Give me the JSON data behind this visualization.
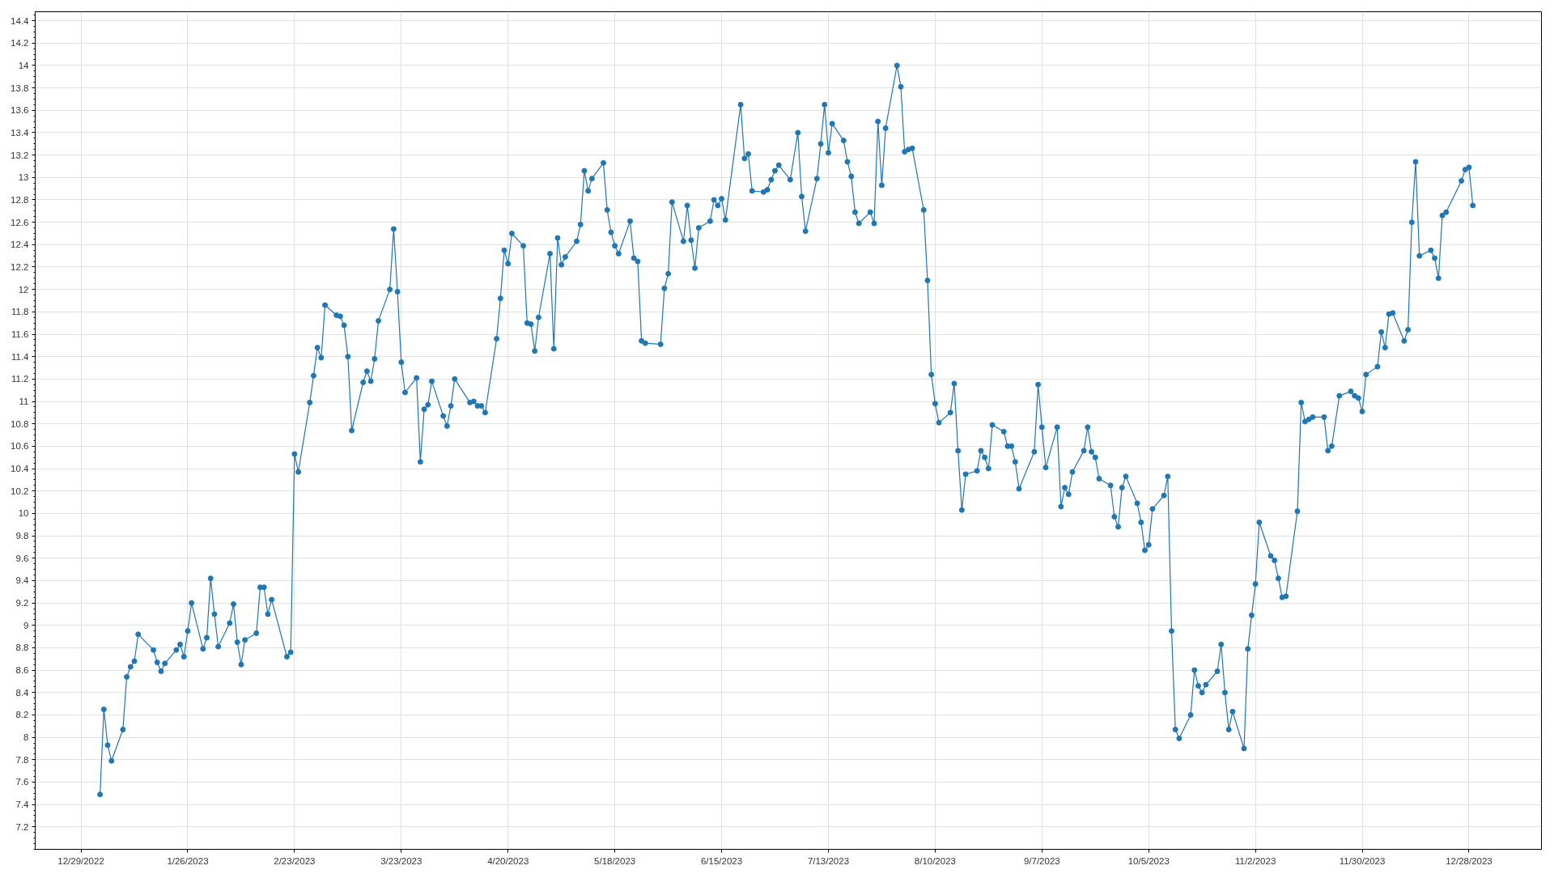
{
  "chart_data": {
    "type": "line",
    "color": "#1f77b4",
    "marker": "circle",
    "line_style": "solid",
    "grid": true,
    "xlim": [
      "2022-12-17",
      "2024-01-16"
    ],
    "xticks": [
      {
        "value": "2022-12-29",
        "label": "12/29/2022"
      },
      {
        "value": "2023-01-26",
        "label": "1/26/2023"
      },
      {
        "value": "2023-02-23",
        "label": "2/23/2023"
      },
      {
        "value": "2023-03-23",
        "label": "3/23/2023"
      },
      {
        "value": "2023-04-20",
        "label": "4/20/2023"
      },
      {
        "value": "2023-05-18",
        "label": "5/18/2023"
      },
      {
        "value": "2023-06-15",
        "label": "6/15/2023"
      },
      {
        "value": "2023-07-13",
        "label": "7/13/2023"
      },
      {
        "value": "2023-08-10",
        "label": "8/10/2023"
      },
      {
        "value": "2023-09-07",
        "label": "9/7/2023"
      },
      {
        "value": "2023-10-05",
        "label": "10/5/2023"
      },
      {
        "value": "2023-11-02",
        "label": "11/2/2023"
      },
      {
        "value": "2023-11-30",
        "label": "11/30/2023"
      },
      {
        "value": "2023-12-28",
        "label": "12/28/2023"
      }
    ],
    "ylim": [
      7.0,
      14.48
    ],
    "yticks": [
      7.2,
      7.4,
      7.6,
      7.8,
      8,
      8.2,
      8.4,
      8.6,
      8.8,
      9,
      9.2,
      9.4,
      9.6,
      9.8,
      10,
      10.2,
      10.4,
      10.6,
      10.8,
      11,
      11.2,
      11.4,
      11.6,
      11.8,
      12,
      12.2,
      12.4,
      12.6,
      12.8,
      13,
      13.2,
      13.4,
      13.6,
      13.8,
      14,
      14.2,
      14.4
    ],
    "x": [
      "2023-01-03",
      "2023-01-04",
      "2023-01-05",
      "2023-01-06",
      "2023-01-09",
      "2023-01-10",
      "2023-01-11",
      "2023-01-12",
      "2023-01-13",
      "2023-01-17",
      "2023-01-18",
      "2023-01-19",
      "2023-01-20",
      "2023-01-23",
      "2023-01-24",
      "2023-01-25",
      "2023-01-26",
      "2023-01-27",
      "2023-01-30",
      "2023-01-31",
      "2023-02-01",
      "2023-02-02",
      "2023-02-03",
      "2023-02-06",
      "2023-02-07",
      "2023-02-08",
      "2023-02-09",
      "2023-02-10",
      "2023-02-13",
      "2023-02-14",
      "2023-02-15",
      "2023-02-16",
      "2023-02-17",
      "2023-02-21",
      "2023-02-22",
      "2023-02-23",
      "2023-02-24",
      "2023-02-27",
      "2023-02-28",
      "2023-03-01",
      "2023-03-02",
      "2023-03-03",
      "2023-03-06",
      "2023-03-07",
      "2023-03-08",
      "2023-03-09",
      "2023-03-10",
      "2023-03-13",
      "2023-03-14",
      "2023-03-15",
      "2023-03-16",
      "2023-03-17",
      "2023-03-20",
      "2023-03-21",
      "2023-03-22",
      "2023-03-23",
      "2023-03-24",
      "2023-03-27",
      "2023-03-28",
      "2023-03-29",
      "2023-03-30",
      "2023-03-31",
      "2023-04-03",
      "2023-04-04",
      "2023-04-05",
      "2023-04-06",
      "2023-04-10",
      "2023-04-11",
      "2023-04-12",
      "2023-04-13",
      "2023-04-14",
      "2023-04-17",
      "2023-04-18",
      "2023-04-19",
      "2023-04-20",
      "2023-04-21",
      "2023-04-24",
      "2023-04-25",
      "2023-04-26",
      "2023-04-27",
      "2023-04-28",
      "2023-05-01",
      "2023-05-02",
      "2023-05-03",
      "2023-05-04",
      "2023-05-05",
      "2023-05-08",
      "2023-05-09",
      "2023-05-10",
      "2023-05-11",
      "2023-05-12",
      "2023-05-15",
      "2023-05-16",
      "2023-05-17",
      "2023-05-18",
      "2023-05-19",
      "2023-05-22",
      "2023-05-23",
      "2023-05-24",
      "2023-05-25",
      "2023-05-26",
      "2023-05-30",
      "2023-05-31",
      "2023-06-01",
      "2023-06-02",
      "2023-06-05",
      "2023-06-06",
      "2023-06-07",
      "2023-06-08",
      "2023-06-09",
      "2023-06-12",
      "2023-06-13",
      "2023-06-14",
      "2023-06-15",
      "2023-06-16",
      "2023-06-20",
      "2023-06-21",
      "2023-06-22",
      "2023-06-23",
      "2023-06-26",
      "2023-06-27",
      "2023-06-28",
      "2023-06-29",
      "2023-06-30",
      "2023-07-03",
      "2023-07-05",
      "2023-07-06",
      "2023-07-07",
      "2023-07-10",
      "2023-07-11",
      "2023-07-12",
      "2023-07-13",
      "2023-07-14",
      "2023-07-17",
      "2023-07-18",
      "2023-07-19",
      "2023-07-20",
      "2023-07-21",
      "2023-07-24",
      "2023-07-25",
      "2023-07-26",
      "2023-07-27",
      "2023-07-28",
      "2023-07-31",
      "2023-08-01",
      "2023-08-02",
      "2023-08-03",
      "2023-08-04",
      "2023-08-07",
      "2023-08-08",
      "2023-08-09",
      "2023-08-10",
      "2023-08-11",
      "2023-08-14",
      "2023-08-15",
      "2023-08-16",
      "2023-08-17",
      "2023-08-18",
      "2023-08-21",
      "2023-08-22",
      "2023-08-23",
      "2023-08-24",
      "2023-08-25",
      "2023-08-28",
      "2023-08-29",
      "2023-08-30",
      "2023-08-31",
      "2023-09-01",
      "2023-09-05",
      "2023-09-06",
      "2023-09-07",
      "2023-09-08",
      "2023-09-11",
      "2023-09-12",
      "2023-09-13",
      "2023-09-14",
      "2023-09-15",
      "2023-09-18",
      "2023-09-19",
      "2023-09-20",
      "2023-09-21",
      "2023-09-22",
      "2023-09-25",
      "2023-09-26",
      "2023-09-27",
      "2023-09-28",
      "2023-09-29",
      "2023-10-02",
      "2023-10-03",
      "2023-10-04",
      "2023-10-05",
      "2023-10-06",
      "2023-10-09",
      "2023-10-10",
      "2023-10-11",
      "2023-10-12",
      "2023-10-13",
      "2023-10-16",
      "2023-10-17",
      "2023-10-18",
      "2023-10-19",
      "2023-10-20",
      "2023-10-23",
      "2023-10-24",
      "2023-10-25",
      "2023-10-26",
      "2023-10-27",
      "2023-10-30",
      "2023-10-31",
      "2023-11-01",
      "2023-11-02",
      "2023-11-03",
      "2023-11-06",
      "2023-11-07",
      "2023-11-08",
      "2023-11-09",
      "2023-11-10",
      "2023-11-13",
      "2023-11-14",
      "2023-11-15",
      "2023-11-16",
      "2023-11-17",
      "2023-11-20",
      "2023-11-21",
      "2023-11-22",
      "2023-11-24",
      "2023-11-27",
      "2023-11-28",
      "2023-11-29",
      "2023-11-30",
      "2023-12-01",
      "2023-12-04",
      "2023-12-05",
      "2023-12-06",
      "2023-12-07",
      "2023-12-08",
      "2023-12-11",
      "2023-12-12",
      "2023-12-13",
      "2023-12-14",
      "2023-12-15",
      "2023-12-18",
      "2023-12-19",
      "2023-12-20",
      "2023-12-21",
      "2023-12-22",
      "2023-12-26",
      "2023-12-27",
      "2023-12-28",
      "2023-12-29"
    ],
    "values": [
      7.49,
      8.25,
      7.93,
      7.79,
      8.07,
      8.54,
      8.63,
      8.68,
      8.92,
      8.78,
      8.67,
      8.59,
      8.66,
      8.78,
      8.83,
      8.72,
      8.95,
      9.2,
      8.79,
      8.89,
      9.42,
      9.1,
      8.81,
      9.02,
      9.19,
      8.85,
      8.65,
      8.87,
      8.93,
      9.34,
      9.34,
      9.1,
      9.23,
      8.72,
      8.76,
      10.53,
      10.37,
      10.99,
      11.23,
      11.48,
      11.39,
      11.86,
      11.77,
      11.76,
      11.68,
      11.4,
      10.74,
      11.17,
      11.27,
      11.18,
      11.38,
      11.72,
      12.0,
      12.54,
      11.98,
      11.35,
      11.08,
      11.21,
      10.46,
      10.93,
      10.97,
      11.18,
      10.87,
      10.78,
      10.96,
      11.2,
      10.99,
      11.0,
      10.96,
      10.96,
      10.9,
      11.56,
      11.92,
      12.35,
      12.23,
      12.5,
      12.39,
      11.7,
      11.69,
      11.45,
      11.75,
      12.32,
      11.47,
      12.46,
      12.22,
      12.29,
      12.43,
      12.58,
      13.06,
      12.88,
      12.99,
      13.13,
      12.71,
      12.51,
      12.39,
      12.32,
      12.61,
      12.28,
      12.25,
      11.54,
      11.52,
      11.51,
      12.01,
      12.14,
      12.78,
      12.43,
      12.75,
      12.44,
      12.19,
      12.55,
      12.61,
      12.8,
      12.75,
      12.81,
      12.62,
      13.65,
      13.17,
      13.21,
      12.88,
      12.87,
      12.89,
      12.98,
      13.06,
      13.11,
      12.98,
      13.4,
      12.83,
      12.52,
      12.99,
      13.3,
      13.65,
      13.22,
      13.48,
      13.33,
      13.14,
      13.01,
      12.69,
      12.59,
      12.69,
      12.59,
      13.5,
      12.93,
      13.44,
      14.0,
      13.81,
      13.23,
      13.25,
      13.26,
      12.71,
      12.08,
      11.24,
      10.98,
      10.81,
      10.9,
      11.16,
      10.56,
      10.03,
      10.35,
      10.38,
      10.56,
      10.5,
      10.4,
      10.79,
      10.73,
      10.6,
      10.6,
      10.46,
      10.22,
      10.55,
      11.15,
      10.77,
      10.41,
      10.77,
      10.06,
      10.23,
      10.17,
      10.37,
      10.56,
      10.77,
      10.55,
      10.5,
      10.31,
      10.25,
      9.97,
      9.88,
      10.23,
      10.33,
      10.09,
      9.92,
      9.67,
      9.72,
      10.04,
      10.16,
      10.33,
      8.95,
      8.07,
      7.99,
      8.2,
      8.6,
      8.46,
      8.4,
      8.47,
      8.59,
      8.83,
      8.4,
      8.07,
      8.23,
      7.9,
      8.79,
      9.09,
      9.37,
      9.92,
      9.62,
      9.58,
      9.42,
      9.25,
      9.26,
      10.02,
      10.99,
      10.82,
      10.84,
      10.86,
      10.86,
      10.56,
      10.6,
      11.05,
      11.09,
      11.05,
      11.03,
      10.91,
      11.24,
      11.31,
      11.62,
      11.48,
      11.78,
      11.79,
      11.54,
      11.64,
      12.6,
      13.14,
      12.3,
      12.35,
      12.28,
      12.1,
      12.66,
      12.69,
      12.97,
      13.07,
      13.09,
      12.75
    ]
  }
}
